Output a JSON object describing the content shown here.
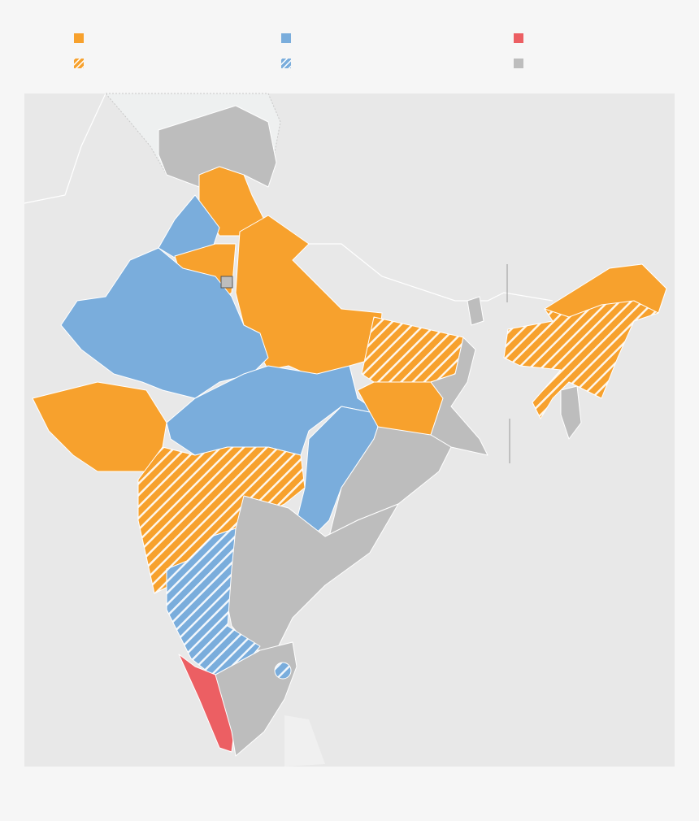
{
  "legend": [
    {
      "color": "#f7a12d",
      "hatched": false
    },
    {
      "color": "#f7a12d",
      "hatched": true
    },
    {
      "color": "#7aaddc",
      "hatched": false
    },
    {
      "color": "#7aaddc",
      "hatched": true
    },
    {
      "color": "#ec5f63",
      "hatched": false
    },
    {
      "color": "#bdbdbd",
      "hatched": false
    }
  ]
}
